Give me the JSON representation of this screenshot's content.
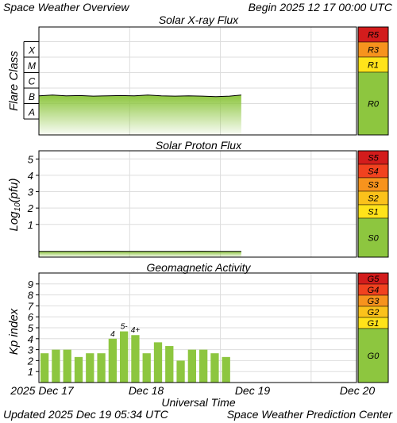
{
  "header": {
    "title": "Space Weather Overview",
    "begin": "Begin 2025 12 17 00:00 UTC"
  },
  "footer": {
    "updated": "Updated 2025 Dec 19 05:34 UTC",
    "source": "Space Weather Prediction Center",
    "xlabel": "Universal Time",
    "dates": [
      "2025 Dec 17",
      "Dec 18",
      "Dec 19",
      "Dec 20"
    ]
  },
  "colors": {
    "green": "#8dc63f",
    "yellow": "#ffe31a",
    "amber": "#fbc21b",
    "orange": "#f7931d",
    "redorange": "#f1421f",
    "red": "#d31c1c",
    "bar": "#8dc63f",
    "trace": "#000000"
  },
  "chart_data": [
    {
      "type": "line",
      "title": "Solar X-ray Flux",
      "ylabel": "Flare Class",
      "y_scale": "log",
      "y_categories": [
        "A",
        "B",
        "C",
        "M",
        "X"
      ],
      "x_range_days": [
        0,
        3.5
      ],
      "data_end_day": 2.23,
      "baseline_class": "B",
      "x": [
        0,
        0.15,
        0.3,
        0.45,
        0.6,
        0.75,
        0.9,
        1.05,
        1.2,
        1.35,
        1.5,
        1.65,
        1.8,
        1.95,
        2.1,
        2.23
      ],
      "y_level": [
        1.2,
        1.25,
        1.2,
        1.22,
        1.18,
        1.2,
        1.22,
        1.2,
        1.25,
        1.2,
        1.18,
        1.2,
        1.18,
        1.15,
        1.18,
        1.25
      ],
      "scale_labels": [
        "R5",
        "R3",
        "R1",
        "R0"
      ]
    },
    {
      "type": "line",
      "title": "Solar Proton Flux",
      "ylabel": "Log10(pfu)",
      "ylabel_parts": [
        "Log",
        "10",
        "(pfu)"
      ],
      "y_ticks": [
        "1",
        "2",
        "3",
        "4",
        "5"
      ],
      "y_range": [
        -1,
        5.5
      ],
      "x_range_days": [
        0,
        3.5
      ],
      "data_end_day": 2.23,
      "x": [
        0,
        0.25,
        0.5,
        0.75,
        1.0,
        1.25,
        1.5,
        1.75,
        2.0,
        2.23
      ],
      "y": [
        -0.65,
        -0.65,
        -0.65,
        -0.64,
        -0.65,
        -0.65,
        -0.65,
        -0.64,
        -0.65,
        -0.65
      ],
      "scale_labels": [
        "S5",
        "S4",
        "S3",
        "S2",
        "S1",
        "S0"
      ]
    },
    {
      "type": "bar",
      "title": "Geomagnetic Activity",
      "ylabel": "Kp index",
      "y_ticks": [
        "1",
        "2",
        "3",
        "4",
        "5",
        "6",
        "7",
        "8",
        "9"
      ],
      "ylim": [
        0,
        10
      ],
      "bar_width_days": 0.125,
      "x_range_days": [
        0,
        3.5
      ],
      "values": [
        2.67,
        3.0,
        3.0,
        2.33,
        2.67,
        2.67,
        4.0,
        4.67,
        4.33,
        2.67,
        3.67,
        3.33,
        2.0,
        3.0,
        3.0,
        2.67,
        2.33
      ],
      "bar_labels": [
        "",
        "",
        "",
        "",
        "",
        "",
        "4",
        "5-",
        "4+",
        "",
        "",
        "",
        "",
        "",
        "",
        "",
        ""
      ],
      "scale_labels": [
        "G5",
        "G4",
        "G3",
        "G2",
        "G1",
        "G0"
      ]
    }
  ]
}
